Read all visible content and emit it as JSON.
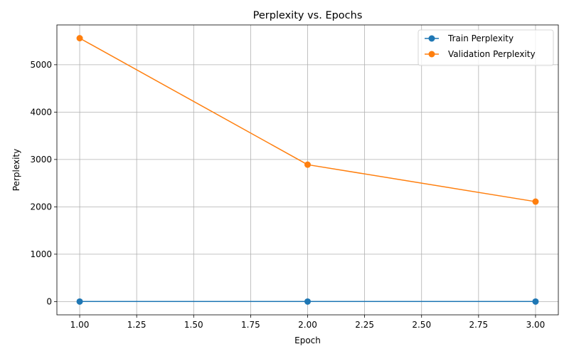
{
  "chart_data": {
    "type": "line",
    "title": "Perplexity vs. Epochs",
    "xlabel": "Epoch",
    "ylabel": "Perplexity",
    "x": [
      1,
      2,
      3
    ],
    "xlim": [
      0.9,
      3.1
    ],
    "ylim": [
      -280,
      5840
    ],
    "xticks": [
      1.0,
      1.25,
      1.5,
      1.75,
      2.0,
      2.25,
      2.5,
      2.75,
      3.0
    ],
    "xtick_labels": [
      "1.00",
      "1.25",
      "1.50",
      "1.75",
      "2.00",
      "2.25",
      "2.50",
      "2.75",
      "3.00"
    ],
    "yticks": [
      0,
      1000,
      2000,
      3000,
      4000,
      5000
    ],
    "ytick_labels": [
      "0",
      "1000",
      "2000",
      "3000",
      "4000",
      "5000"
    ],
    "grid": true,
    "legend_position": "top-right",
    "series": [
      {
        "name": "Train Perplexity",
        "values": [
          1,
          1,
          1
        ],
        "color": "#1f77b4",
        "marker": "circle"
      },
      {
        "name": "Validation Perplexity",
        "values": [
          5560,
          2890,
          2110
        ],
        "color": "#ff7f0e",
        "marker": "circle"
      }
    ]
  }
}
